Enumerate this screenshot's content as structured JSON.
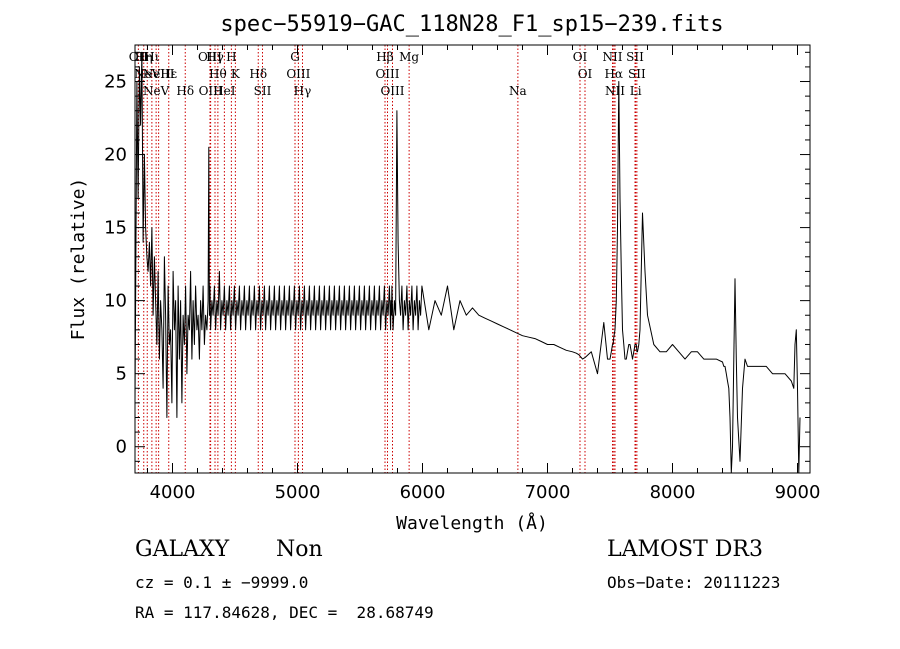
{
  "chart_data": {
    "type": "line",
    "title": "spec−55919−GAC_118N28_F1_sp15−239.fits",
    "xlabel": "Wavelength (Å)",
    "ylabel": "Flux (relative)",
    "xlim": [
      3700,
      9100
    ],
    "ylim": [
      -1.8,
      27.5
    ],
    "x_ticks": [
      4000,
      5000,
      6000,
      7000,
      8000,
      9000
    ],
    "y_ticks": [
      0,
      5,
      10,
      15,
      20,
      25
    ],
    "spectrum": {
      "x": [
        3700,
        3715,
        3725,
        3735,
        3745,
        3755,
        3765,
        3775,
        3785,
        3795,
        3805,
        3815,
        3825,
        3835,
        3845,
        3855,
        3865,
        3875,
        3885,
        3895,
        3905,
        3915,
        3925,
        3935,
        3945,
        3955,
        3965,
        3975,
        3985,
        3995,
        4005,
        4015,
        4025,
        4035,
        4045,
        4055,
        4065,
        4075,
        4085,
        4095,
        4105,
        4115,
        4125,
        4135,
        4145,
        4155,
        4165,
        4175,
        4185,
        4195,
        4205,
        4215,
        4225,
        4235,
        4245,
        4255,
        4265,
        4275,
        4285,
        4290,
        4295,
        4300,
        4305,
        4315,
        4325,
        4335,
        4345,
        4355,
        4365,
        4375,
        4385,
        4395,
        4405,
        4415,
        4425,
        4435,
        4445,
        4455,
        4465,
        4475,
        4485,
        4495,
        4505,
        4515,
        4525,
        4535,
        4545,
        4555,
        4565,
        4575,
        4585,
        4595,
        4605,
        4615,
        4625,
        4635,
        4645,
        4655,
        4665,
        4675,
        4685,
        4695,
        4705,
        4715,
        4725,
        4735,
        4745,
        4755,
        4765,
        4775,
        4785,
        4795,
        4805,
        4815,
        4825,
        4835,
        4845,
        4855,
        4865,
        4875,
        4885,
        4895,
        4905,
        4915,
        4925,
        4935,
        4945,
        4955,
        4965,
        4975,
        4985,
        4995,
        5005,
        5015,
        5025,
        5035,
        5045,
        5055,
        5065,
        5075,
        5085,
        5095,
        5105,
        5115,
        5125,
        5135,
        5145,
        5155,
        5165,
        5175,
        5185,
        5195,
        5205,
        5215,
        5225,
        5235,
        5245,
        5255,
        5265,
        5275,
        5285,
        5295,
        5305,
        5315,
        5325,
        5335,
        5345,
        5355,
        5365,
        5375,
        5385,
        5395,
        5405,
        5415,
        5425,
        5435,
        5445,
        5455,
        5465,
        5475,
        5485,
        5495,
        5505,
        5515,
        5525,
        5535,
        5545,
        5555,
        5565,
        5575,
        5585,
        5595,
        5605,
        5615,
        5625,
        5635,
        5645,
        5655,
        5665,
        5675,
        5685,
        5695,
        5705,
        5715,
        5725,
        5735,
        5745,
        5748,
        5752,
        5755,
        5765,
        5775,
        5785,
        5795,
        5805,
        5815,
        5825,
        5835,
        5845,
        5855,
        5865,
        5875,
        5885,
        5895,
        5905,
        5915,
        5925,
        5935,
        5945,
        5955,
        5965,
        5975,
        5985,
        5995,
        6050,
        6100,
        6150,
        6200,
        6250,
        6300,
        6350,
        6400,
        6450,
        6500,
        6550,
        6600,
        6650,
        6700,
        6750,
        6800,
        6850,
        6900,
        6950,
        7000,
        7050,
        7100,
        7150,
        7200,
        7230,
        7250,
        7260,
        7270,
        7280,
        7300,
        7350,
        7400,
        7450,
        7480,
        7500,
        7510,
        7520,
        7525,
        7530,
        7540,
        7550,
        7560,
        7570,
        7580,
        7590,
        7600,
        7610,
        7620,
        7630,
        7640,
        7650,
        7660,
        7670,
        7680,
        7690,
        7700,
        7705,
        7710,
        7715,
        7720,
        7730,
        7740,
        7760,
        7780,
        7800,
        7850,
        7900,
        7950,
        8000,
        8050,
        8100,
        8150,
        8200,
        8250,
        8300,
        8350,
        8400,
        8410,
        8420,
        8430,
        8440,
        8450,
        8460,
        8470,
        8480,
        8490,
        8500,
        8510,
        8520,
        8540,
        8560,
        8580,
        8600,
        8650,
        8700,
        8750,
        8800,
        8850,
        8900,
        8950,
        8970,
        8980,
        8990,
        9000,
        9010,
        9020
      ],
      "y": [
        3,
        25,
        17,
        26,
        22,
        27,
        14,
        20,
        15,
        13,
        12,
        14,
        11,
        15,
        9,
        13,
        10,
        7,
        12,
        6,
        10,
        8,
        4,
        13,
        9,
        2,
        11,
        7,
        8,
        3,
        12,
        8,
        10,
        2,
        11,
        6,
        10,
        3,
        9,
        7,
        11,
        5,
        9,
        8,
        12,
        6,
        10,
        7,
        11,
        8,
        9,
        6,
        10,
        8,
        11,
        7,
        9,
        8,
        10,
        20.5,
        9,
        11,
        8,
        10,
        9,
        11,
        8,
        10,
        9,
        12,
        8,
        10,
        9,
        11,
        8,
        10,
        9,
        11,
        8,
        10,
        9,
        11,
        8,
        10,
        9,
        11,
        8,
        10,
        9,
        11,
        8,
        10,
        9,
        11,
        8,
        10,
        9,
        11,
        8,
        10,
        9,
        11,
        8,
        10,
        9,
        11,
        8,
        10,
        9,
        11,
        8,
        10,
        9,
        11,
        8,
        10,
        9,
        11,
        8,
        10,
        9,
        11,
        8,
        10,
        9,
        11,
        8,
        10,
        9,
        11,
        8,
        10,
        9,
        11,
        8,
        10,
        9,
        11,
        8,
        10,
        9,
        11,
        8,
        10,
        9,
        11,
        8,
        10,
        9,
        11,
        8,
        10,
        9,
        11,
        8,
        10,
        9,
        11,
        8,
        10,
        9,
        11,
        8,
        10,
        9,
        11,
        8,
        10,
        9,
        11,
        8,
        10,
        9,
        11,
        8,
        10,
        9,
        11,
        8,
        10,
        9,
        11,
        8,
        10,
        9,
        11,
        8,
        10,
        9,
        11,
        8,
        10,
        9,
        11,
        8,
        10,
        9,
        11,
        8,
        10,
        9,
        11,
        8,
        10,
        9,
        11,
        8,
        10,
        9,
        11,
        8,
        10,
        9,
        23,
        14,
        10,
        9,
        11,
        8,
        10,
        9,
        11,
        8,
        10,
        9,
        11,
        8,
        10,
        9,
        11,
        8,
        10,
        9,
        11,
        8,
        10,
        9,
        11,
        8,
        10,
        9,
        9.5,
        9,
        8.8,
        8.6,
        8.4,
        8.2,
        8,
        7.8,
        7.6,
        7.5,
        7.4,
        7.2,
        7,
        7,
        6.8,
        6.6,
        6.5,
        6.4,
        6.3,
        6.2,
        6.1,
        6,
        6.1,
        6.5,
        5,
        8.5,
        6,
        6,
        6.5,
        7,
        7,
        7.5,
        8,
        10,
        15,
        25,
        17,
        12,
        8,
        7,
        6,
        6,
        6.5,
        7,
        7,
        6.5,
        6,
        6.5,
        7,
        7,
        7,
        6.5,
        6.5,
        7,
        8,
        16,
        12,
        9,
        7,
        6.5,
        6.5,
        7,
        6.5,
        6,
        6.5,
        6.5,
        6,
        6,
        6,
        5.8,
        5.5,
        5.5,
        5,
        4.5,
        4,
        2,
        -2,
        0,
        6,
        11.5,
        6,
        2,
        -1,
        4,
        6,
        5.5,
        5.5,
        5.5,
        5.5,
        5,
        5,
        5,
        4.5,
        4,
        7,
        8,
        4,
        -2,
        2
      ],
      "color": "#000000"
    },
    "spectral_lines": [
      {
        "wavelength": 3727,
        "label": "OII",
        "row": 1
      },
      {
        "wavelength": 3770,
        "label": "Hη",
        "row": 1
      },
      {
        "wavelength": 3798,
        "label": "NeV",
        "row": 2
      },
      {
        "wavelength": 3835,
        "label": "Hι",
        "row": 1
      },
      {
        "wavelength": 3869,
        "label": "NeV",
        "row": 3
      },
      {
        "wavelength": 3889,
        "label": "NeIII",
        "row": 2
      },
      {
        "wavelength": 3970,
        "label": "Hε",
        "row": 2
      },
      {
        "wavelength": 4102,
        "label": "Hδ",
        "row": 3
      },
      {
        "wavelength": 4300,
        "label": "OIII",
        "row": 1
      },
      {
        "wavelength": 4305,
        "label": "OIII",
        "row": 3
      },
      {
        "wavelength": 4340,
        "label": "Hγ",
        "row": 1
      },
      {
        "wavelength": 4363,
        "label": "Hθ",
        "row": 2
      },
      {
        "wavelength": 4415,
        "label": "HeI",
        "row": 3
      },
      {
        "wavelength": 4471,
        "label": "H",
        "row": 1
      },
      {
        "wavelength": 4503,
        "label": "K",
        "row": 2
      },
      {
        "wavelength": 4686,
        "label": "Hδ",
        "row": 2
      },
      {
        "wavelength": 4720,
        "label": "SII",
        "row": 3
      },
      {
        "wavelength": 4980,
        "label": "G",
        "row": 1
      },
      {
        "wavelength": 5007,
        "label": "OIII",
        "row": 2
      },
      {
        "wavelength": 5040,
        "label": "Hγ",
        "row": 3
      },
      {
        "wavelength": 5700,
        "label": "Hβ",
        "row": 1
      },
      {
        "wavelength": 5720,
        "label": "OIII",
        "row": 2
      },
      {
        "wavelength": 5760,
        "label": "OIII",
        "row": 3
      },
      {
        "wavelength": 5893,
        "label": "Mg",
        "row": 1
      },
      {
        "wavelength": 6763,
        "label": "Na",
        "row": 3
      },
      {
        "wavelength": 7260,
        "label": "OI",
        "row": 1
      },
      {
        "wavelength": 7300,
        "label": "OI",
        "row": 2
      },
      {
        "wavelength": 7520,
        "label": "NII",
        "row": 1
      },
      {
        "wavelength": 7530,
        "label": "Hα",
        "row": 2
      },
      {
        "wavelength": 7540,
        "label": "NII",
        "row": 3
      },
      {
        "wavelength": 7700,
        "label": "SII",
        "row": 1
      },
      {
        "wavelength": 7715,
        "label": "SII",
        "row": 2
      },
      {
        "wavelength": 7705,
        "label": "Li",
        "row": 3
      }
    ],
    "grid": false,
    "line_marker_color": "#cc0000"
  },
  "info": {
    "object_class": "GALAXY",
    "subclass": "Non",
    "survey": "LAMOST DR3",
    "redshift": "cz = 0.1 ± −9999.0",
    "obs_date": "Obs−Date: 20111223",
    "coords": "RA = 117.84628, DEC =  28.68749"
  }
}
